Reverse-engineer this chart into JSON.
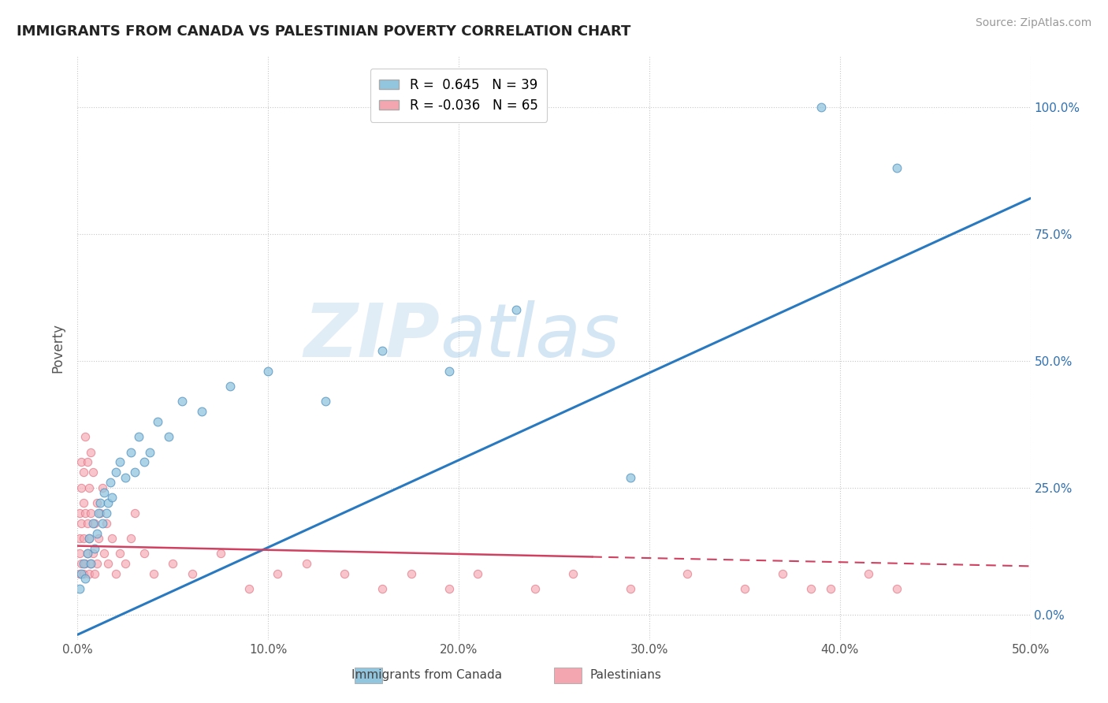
{
  "title": "IMMIGRANTS FROM CANADA VS PALESTINIAN POVERTY CORRELATION CHART",
  "source": "Source: ZipAtlas.com",
  "ylabel": "Poverty",
  "xlim": [
    0.0,
    0.5
  ],
  "ylim": [
    -0.05,
    1.1
  ],
  "xticks": [
    0.0,
    0.1,
    0.2,
    0.3,
    0.4,
    0.5
  ],
  "xtick_labels": [
    "0.0%",
    "10.0%",
    "20.0%",
    "30.0%",
    "40.0%",
    "50.0%"
  ],
  "ytick_labels": [
    "0.0%",
    "25.0%",
    "50.0%",
    "75.0%",
    "100.0%"
  ],
  "ytick_positions": [
    0.0,
    0.25,
    0.5,
    0.75,
    1.0
  ],
  "legend_r1": "R =  0.645   N = 39",
  "legend_r2": "R = -0.036   N = 65",
  "color_canada": "#92c5de",
  "color_palestinians": "#f4a6b0",
  "watermark_zip": "ZIP",
  "watermark_atlas": "atlas",
  "background_color": "#ffffff",
  "grid_color": "#c8c8c8",
  "canada_x": [
    0.001,
    0.002,
    0.003,
    0.004,
    0.005,
    0.006,
    0.007,
    0.008,
    0.009,
    0.01,
    0.011,
    0.012,
    0.013,
    0.014,
    0.015,
    0.016,
    0.017,
    0.018,
    0.02,
    0.022,
    0.025,
    0.028,
    0.03,
    0.032,
    0.035,
    0.038,
    0.042,
    0.048,
    0.055,
    0.065,
    0.08,
    0.1,
    0.13,
    0.16,
    0.195,
    0.23,
    0.29,
    0.39,
    0.43
  ],
  "canada_y": [
    0.05,
    0.08,
    0.1,
    0.07,
    0.12,
    0.15,
    0.1,
    0.18,
    0.13,
    0.16,
    0.2,
    0.22,
    0.18,
    0.24,
    0.2,
    0.22,
    0.26,
    0.23,
    0.28,
    0.3,
    0.27,
    0.32,
    0.28,
    0.35,
    0.3,
    0.32,
    0.38,
    0.35,
    0.42,
    0.4,
    0.45,
    0.48,
    0.42,
    0.52,
    0.48,
    0.6,
    0.27,
    1.0,
    0.88
  ],
  "pal_x": [
    0.001,
    0.001,
    0.001,
    0.001,
    0.002,
    0.002,
    0.002,
    0.002,
    0.003,
    0.003,
    0.003,
    0.003,
    0.004,
    0.004,
    0.004,
    0.005,
    0.005,
    0.005,
    0.006,
    0.006,
    0.006,
    0.007,
    0.007,
    0.007,
    0.008,
    0.008,
    0.009,
    0.009,
    0.01,
    0.01,
    0.011,
    0.012,
    0.013,
    0.014,
    0.015,
    0.016,
    0.018,
    0.02,
    0.022,
    0.025,
    0.028,
    0.03,
    0.035,
    0.04,
    0.05,
    0.06,
    0.075,
    0.09,
    0.105,
    0.12,
    0.14,
    0.16,
    0.175,
    0.195,
    0.21,
    0.24,
    0.26,
    0.29,
    0.32,
    0.35,
    0.37,
    0.385,
    0.395,
    0.415,
    0.43
  ],
  "pal_y": [
    0.08,
    0.12,
    0.15,
    0.2,
    0.1,
    0.18,
    0.25,
    0.3,
    0.08,
    0.15,
    0.22,
    0.28,
    0.1,
    0.2,
    0.35,
    0.12,
    0.18,
    0.3,
    0.08,
    0.15,
    0.25,
    0.1,
    0.2,
    0.32,
    0.12,
    0.28,
    0.08,
    0.18,
    0.1,
    0.22,
    0.15,
    0.2,
    0.25,
    0.12,
    0.18,
    0.1,
    0.15,
    0.08,
    0.12,
    0.1,
    0.15,
    0.2,
    0.12,
    0.08,
    0.1,
    0.08,
    0.12,
    0.05,
    0.08,
    0.1,
    0.08,
    0.05,
    0.08,
    0.05,
    0.08,
    0.05,
    0.08,
    0.05,
    0.08,
    0.05,
    0.08,
    0.05,
    0.05,
    0.08,
    0.05
  ],
  "canada_line_x": [
    0.0,
    0.5
  ],
  "canada_line_y": [
    -0.04,
    0.82
  ],
  "pal_line_x": [
    0.0,
    0.5
  ],
  "pal_line_y": [
    0.135,
    0.095
  ]
}
